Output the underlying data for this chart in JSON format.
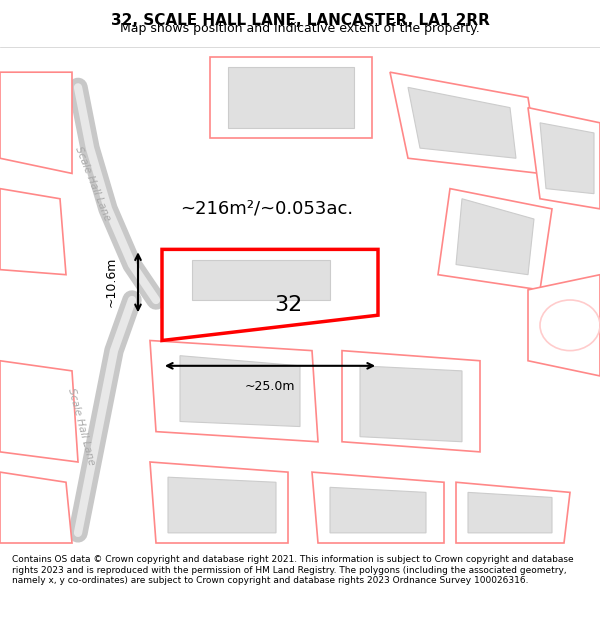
{
  "title": "32, SCALE HALL LANE, LANCASTER, LA1 2RR",
  "subtitle": "Map shows position and indicative extent of the property.",
  "footer": "Contains OS data © Crown copyright and database right 2021. This information is subject to Crown copyright and database rights 2023 and is reproduced with the permission of HM Land Registry. The polygons (including the associated geometry, namely x, y co-ordinates) are subject to Crown copyright and database rights 2023 Ordnance Survey 100026316.",
  "bg_color": "#ffffff",
  "map_bg": "#ffffff",
  "road_color": "#cccccc",
  "plot_outline_color": "#ff0000",
  "plot_fill_color": "#ffffff",
  "building_fill": "#e0e0e0",
  "building_edge": "#cccccc",
  "other_plot_color": "#ffcccc",
  "area_label": "~216m²/~0.053ac.",
  "width_label": "~25.0m",
  "height_label": "~10.6m",
  "number_label": "32",
  "title_fontsize": 11,
  "subtitle_fontsize": 9,
  "footer_fontsize": 6.5
}
